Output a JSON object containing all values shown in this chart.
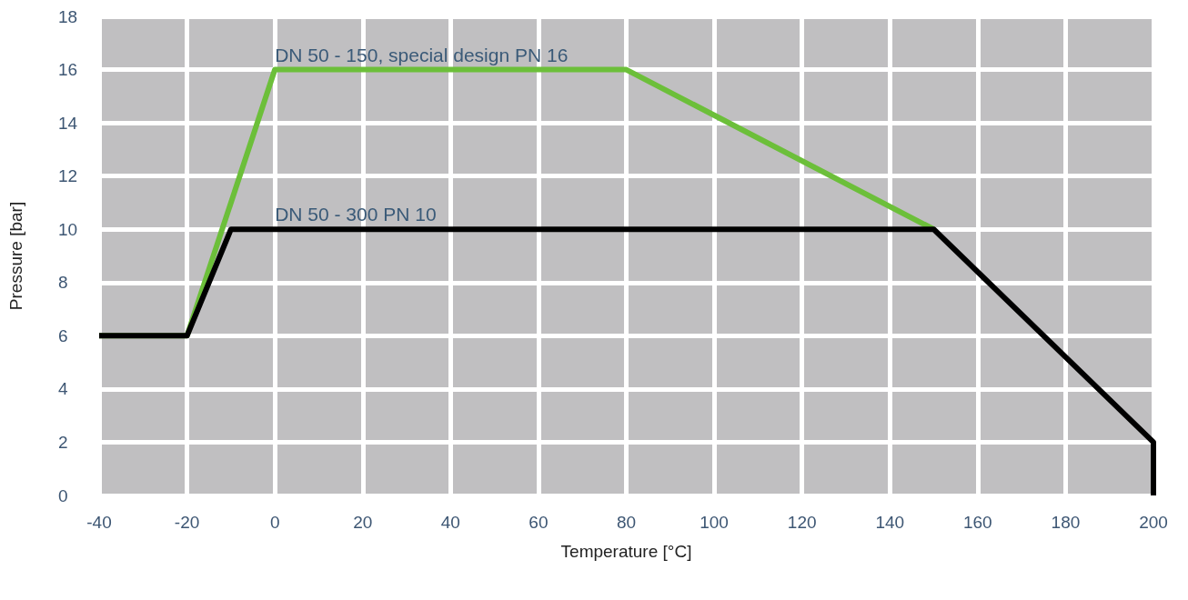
{
  "chart_data": {
    "type": "line",
    "xlabel": "Temperature [°C]",
    "ylabel": "Pressure [bar]",
    "xlim": [
      -40,
      200
    ],
    "xticks": [
      -40,
      -20,
      0,
      20,
      40,
      60,
      80,
      100,
      120,
      140,
      160,
      180,
      200
    ],
    "ylim": [
      0,
      18
    ],
    "yticks": [
      0,
      2,
      4,
      6,
      8,
      10,
      12,
      14,
      16,
      18
    ],
    "grid": true,
    "marker": "none",
    "line_style": "solid",
    "series": [
      {
        "color": "#6cbf3a",
        "x": [
          -40,
          -20,
          0,
          80,
          150
        ],
        "values": [
          6,
          6,
          16,
          16,
          10
        ]
      },
      {
        "color": "#000000",
        "x": [
          -40,
          -20,
          -10,
          150,
          200,
          200
        ],
        "values": [
          6,
          6,
          10,
          10,
          2,
          0
        ]
      }
    ],
    "annotations": [
      {
        "text": "DN 50 - 150, special design PN 16",
        "x": 0,
        "y": 16
      },
      {
        "text": "DN 50 - 300 PN 10",
        "x": 0,
        "y": 10
      }
    ]
  }
}
